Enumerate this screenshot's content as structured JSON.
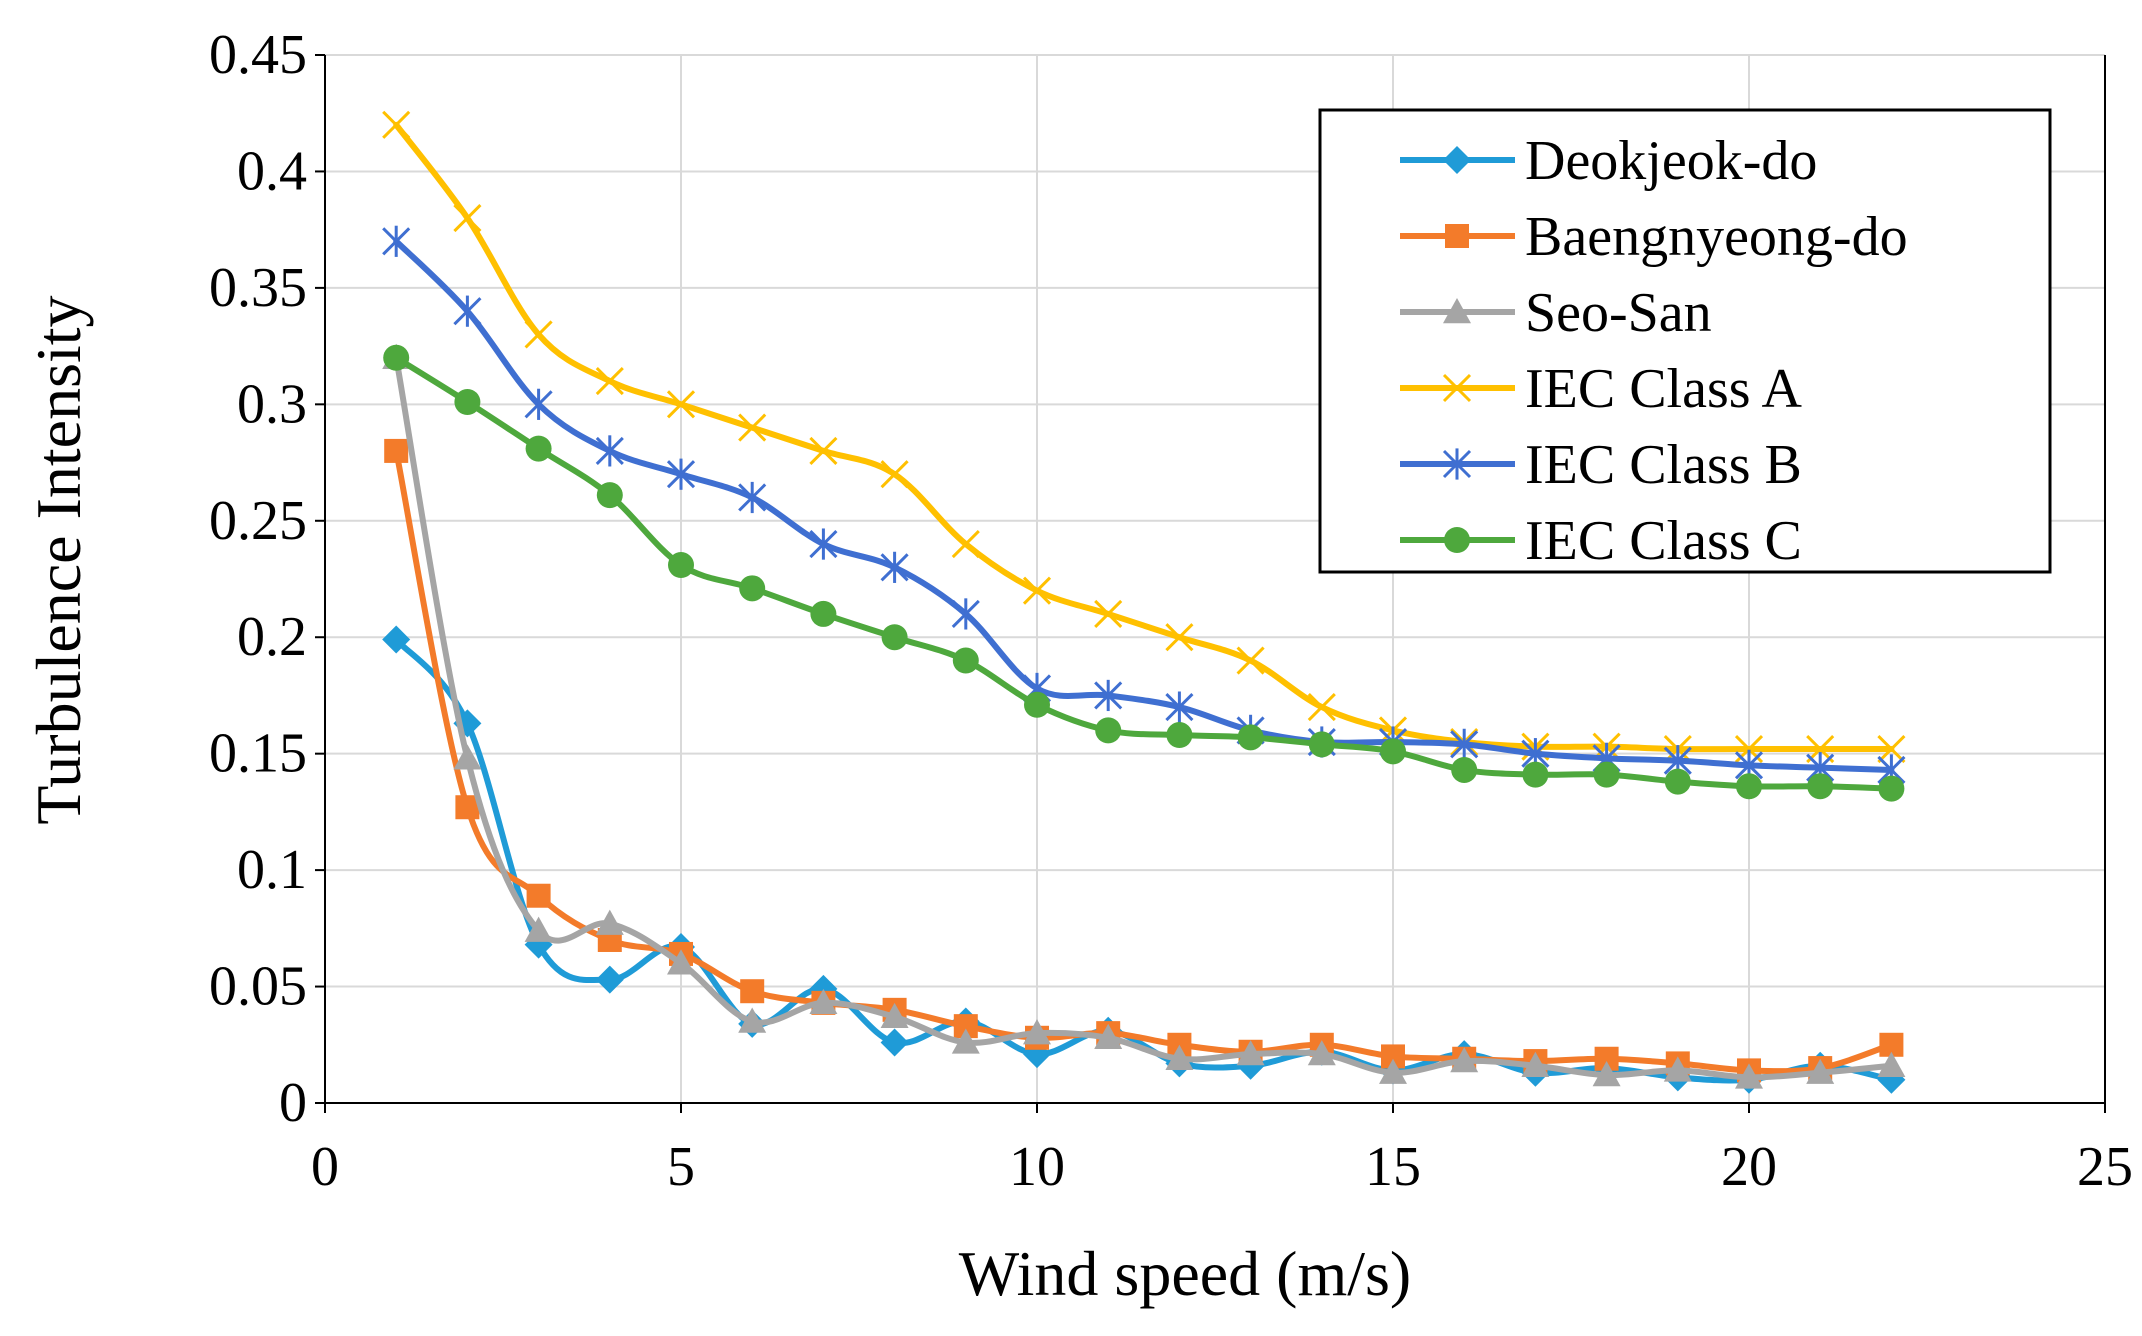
{
  "chart_data": {
    "type": "line",
    "xlabel": "Wind speed (m/s)",
    "ylabel": "Turbulence Intensity",
    "xlim": [
      0,
      25
    ],
    "ylim": [
      0,
      0.45
    ],
    "xticks": [
      0,
      5,
      10,
      15,
      20,
      25
    ],
    "xtick_labels": [
      "0",
      "5",
      "10",
      "15",
      "20",
      "25"
    ],
    "yticks": [
      0,
      0.05,
      0.1,
      0.15,
      0.2,
      0.25,
      0.3,
      0.35,
      0.4,
      0.45
    ],
    "ytick_labels": [
      "0",
      "0.05",
      "0.1",
      "0.15",
      "0.2",
      "0.25",
      "0.3",
      "0.35",
      "0.4",
      "0.45"
    ],
    "grid": true,
    "legend_position": "top-right",
    "smooth_lines": true,
    "x": [
      1,
      2,
      3,
      4,
      5,
      6,
      7,
      8,
      9,
      10,
      11,
      12,
      13,
      14,
      15,
      16,
      17,
      18,
      19,
      20,
      21,
      22
    ],
    "series": [
      {
        "name": "Deokjeok-do",
        "color": "#1f9bd7",
        "marker": "diamond",
        "values": [
          0.199,
          0.163,
          0.068,
          0.053,
          0.067,
          0.034,
          0.049,
          0.026,
          0.035,
          0.021,
          0.031,
          0.017,
          0.016,
          0.022,
          0.014,
          0.021,
          0.013,
          0.015,
          0.011,
          0.01,
          0.016,
          0.01
        ]
      },
      {
        "name": "Baengnyeong-do",
        "color": "#f37b2a",
        "marker": "square",
        "values": [
          0.28,
          0.127,
          0.089,
          0.07,
          0.064,
          0.048,
          0.043,
          0.04,
          0.033,
          0.028,
          0.03,
          0.025,
          0.022,
          0.025,
          0.02,
          0.019,
          0.018,
          0.019,
          0.017,
          0.014,
          0.015,
          0.025
        ]
      },
      {
        "name": "Seo-San",
        "color": "#a5a5a5",
        "marker": "triangle",
        "values": [
          0.32,
          0.148,
          0.074,
          0.077,
          0.06,
          0.035,
          0.043,
          0.037,
          0.026,
          0.03,
          0.028,
          0.019,
          0.021,
          0.021,
          0.013,
          0.018,
          0.016,
          0.012,
          0.014,
          0.011,
          0.013,
          0.016
        ]
      },
      {
        "name": "IEC Class A",
        "color": "#ffc000",
        "marker": "x",
        "values": [
          0.42,
          0.38,
          0.33,
          0.31,
          0.3,
          0.29,
          0.28,
          0.27,
          0.24,
          0.22,
          0.21,
          0.2,
          0.19,
          0.17,
          0.16,
          0.155,
          0.153,
          0.153,
          0.152,
          0.152,
          0.152,
          0.152
        ]
      },
      {
        "name": "IEC Class B",
        "color": "#3f6fd1",
        "marker": "star",
        "values": [
          0.37,
          0.34,
          0.3,
          0.28,
          0.27,
          0.26,
          0.24,
          0.23,
          0.21,
          0.178,
          0.175,
          0.17,
          0.16,
          0.155,
          0.155,
          0.154,
          0.15,
          0.148,
          0.147,
          0.145,
          0.144,
          0.143
        ]
      },
      {
        "name": "IEC Class C",
        "color": "#4ea83d",
        "marker": "circle",
        "values": [
          0.32,
          0.301,
          0.281,
          0.261,
          0.231,
          0.221,
          0.21,
          0.2,
          0.19,
          0.171,
          0.16,
          0.158,
          0.157,
          0.154,
          0.151,
          0.143,
          0.141,
          0.141,
          0.138,
          0.136,
          0.136,
          0.135
        ]
      }
    ]
  }
}
